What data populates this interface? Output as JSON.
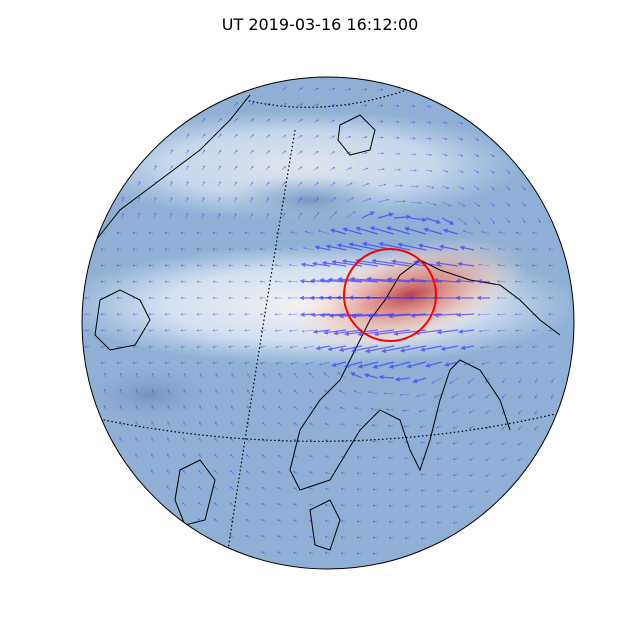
{
  "title": "UT 2019-03-16 16:12:00",
  "map": {
    "projection": "orthographic",
    "background_color": "#8fb0d4",
    "band_color": "#f2f0f2",
    "enhancement_color": "#d9422f",
    "arrow_color": "#3a3aff",
    "coastline_color": "#000000",
    "gridline_style": "dotted",
    "marker": {
      "type": "circle",
      "color": "#ff0000"
    }
  }
}
